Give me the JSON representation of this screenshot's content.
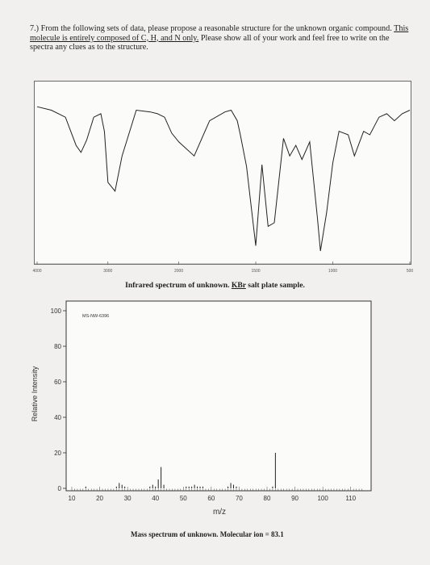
{
  "question": {
    "part1": "7.) From the following sets of data, please propose a reasonable structure for the unknown organic compound. ",
    "underlined": "This molecule is entirely composed of C, H, and N only.",
    "part2": " Please show all of your work and feel free to write on the spectra any clues as to the structure."
  },
  "ir": {
    "caption_pre": "Infrared spectrum of unknown. ",
    "caption_underlined": "KBr",
    "caption_post": " salt plate sample.",
    "tick_labels": [
      "4000",
      "3000",
      "2000",
      "1500",
      "1000",
      "500"
    ],
    "chart_data": {
      "type": "line",
      "xlabel": "",
      "ylabel": "",
      "x": [
        4000,
        3800,
        3600,
        3450,
        3380,
        3300,
        3200,
        3100,
        3050,
        3000,
        2900,
        2800,
        2600,
        2400,
        2300,
        2200,
        2100,
        2000,
        1900,
        1800,
        1700,
        1660,
        1620,
        1600,
        1560,
        1500,
        1460,
        1420,
        1380,
        1320,
        1280,
        1240,
        1200,
        1150,
        1100,
        1080,
        1040,
        1000,
        960,
        900,
        860,
        800,
        760,
        700,
        650,
        600,
        550,
        500
      ],
      "y": [
        88,
        86,
        82,
        66,
        62,
        69,
        82,
        84,
        74,
        45,
        40,
        60,
        86,
        85,
        84,
        82,
        73,
        68,
        60,
        80,
        85,
        86,
        80,
        72,
        54,
        9,
        55,
        20,
        22,
        70,
        60,
        66,
        58,
        68,
        25,
        6,
        28,
        56,
        74,
        72,
        60,
        74,
        72,
        82,
        84,
        80,
        84,
        86
      ]
    }
  },
  "ms": {
    "ylabel": "Relative Intensity",
    "xlabel": "m/z",
    "annotation": "MS-NW-6396",
    "y_ticks": [
      "100",
      "80",
      "60",
      "40",
      "20",
      "0"
    ],
    "x_ticks": [
      "10",
      "20",
      "30",
      "40",
      "50",
      "60",
      "70",
      "80",
      "90",
      "100",
      "110"
    ],
    "caption": "Mass spectrum of unknown. Molecular ion = 83.1",
    "chart_data": {
      "type": "bar",
      "xlabel": "m/z",
      "ylabel": "Relative Intensity",
      "xlim": [
        10,
        115
      ],
      "ylim": [
        0,
        100
      ],
      "x": [
        15,
        26,
        27,
        28,
        29,
        38,
        39,
        40,
        41,
        42,
        43,
        51,
        52,
        53,
        54,
        55,
        56,
        57,
        66,
        67,
        68,
        69,
        82,
        83
      ],
      "y": [
        1,
        1,
        3,
        2,
        1,
        1,
        2,
        1,
        5,
        12,
        2,
        1,
        1,
        1,
        2,
        1,
        1,
        1,
        1,
        3,
        2,
        1,
        1,
        20
      ]
    }
  }
}
